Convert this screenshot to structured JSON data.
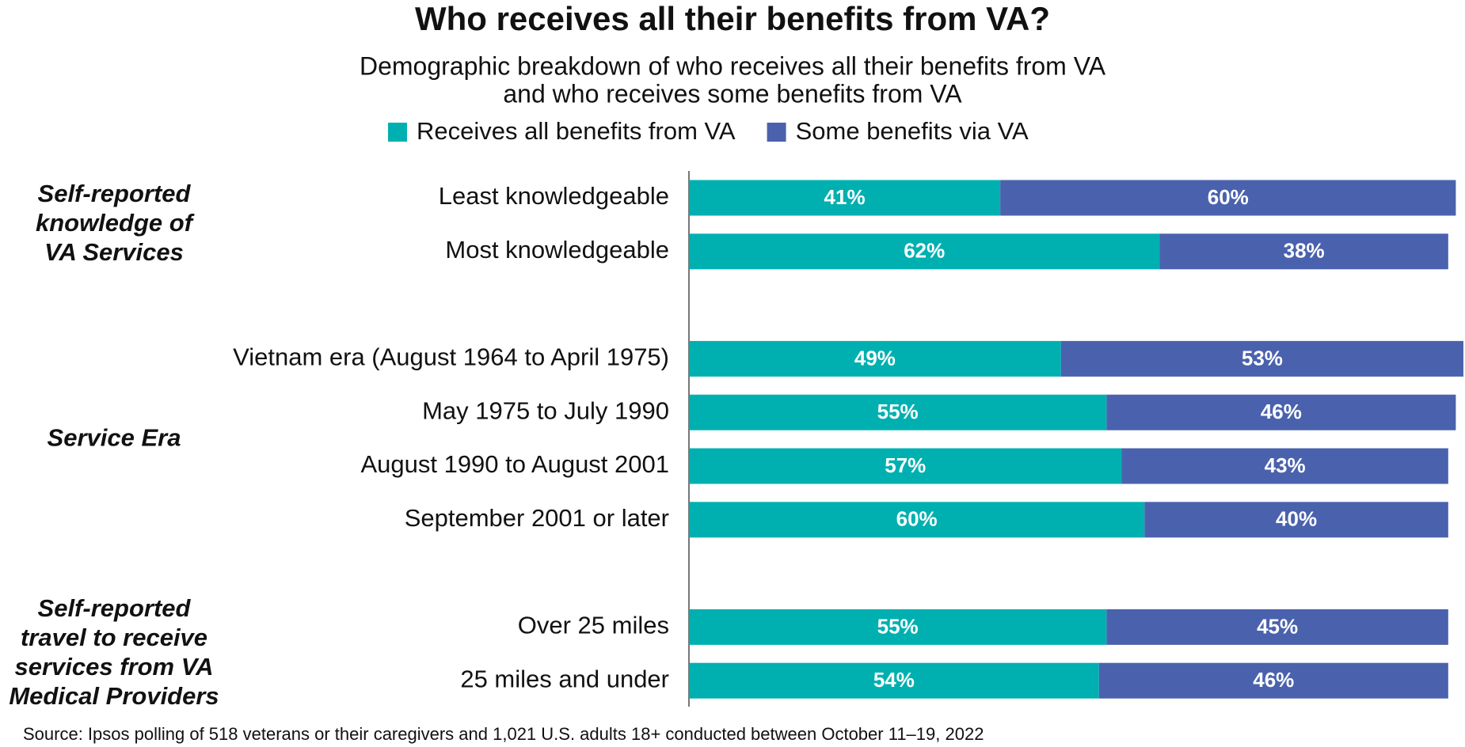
{
  "chart_data": {
    "type": "stacked-bar-horizontal",
    "title": "Who receives all their benefits from VA?",
    "subtitle": [
      "Demographic breakdown of who receives all their benefits from VA",
      "and who receives some benefits from VA"
    ],
    "group_labels": [
      [
        "Self-reported",
        "knowledge of",
        "VA Services"
      ],
      [
        "Service Era"
      ],
      [
        "Self-reported",
        "travel to receive",
        "services from VA",
        "Medical Providers"
      ]
    ],
    "categories": [
      "Least knowledgeable",
      "Most knowledgeable",
      null,
      "Vietnam era (August 1964 to April 1975)",
      "May 1975 to July 1990",
      "August 1990 to August 2001",
      "September 2001 or later",
      null,
      "Over 25 miles",
      "25 miles and under"
    ],
    "series": [
      {
        "name": "Receives all benefits from VA",
        "color": "#00b0b0",
        "values": [
          41,
          62,
          null,
          49,
          55,
          57,
          60,
          null,
          55,
          54
        ],
        "value_labels": [
          "41%",
          "62%",
          null,
          "49%",
          "55%",
          "57%",
          "60%",
          null,
          "55%",
          "54%"
        ]
      },
      {
        "name": "Some benefits via VA",
        "color": "#4a62ad",
        "values": [
          60,
          38,
          null,
          53,
          46,
          43,
          40,
          null,
          45,
          46
        ],
        "value_labels": [
          "60%",
          "38%",
          null,
          "53%",
          "46%",
          "43%",
          "40%",
          null,
          "45%",
          "46%"
        ]
      }
    ],
    "source": "Source: Ipsos polling of 518 veterans or their caregivers and 1,021 U.S. adults 18+ conducted between October 11–19, 2022"
  }
}
